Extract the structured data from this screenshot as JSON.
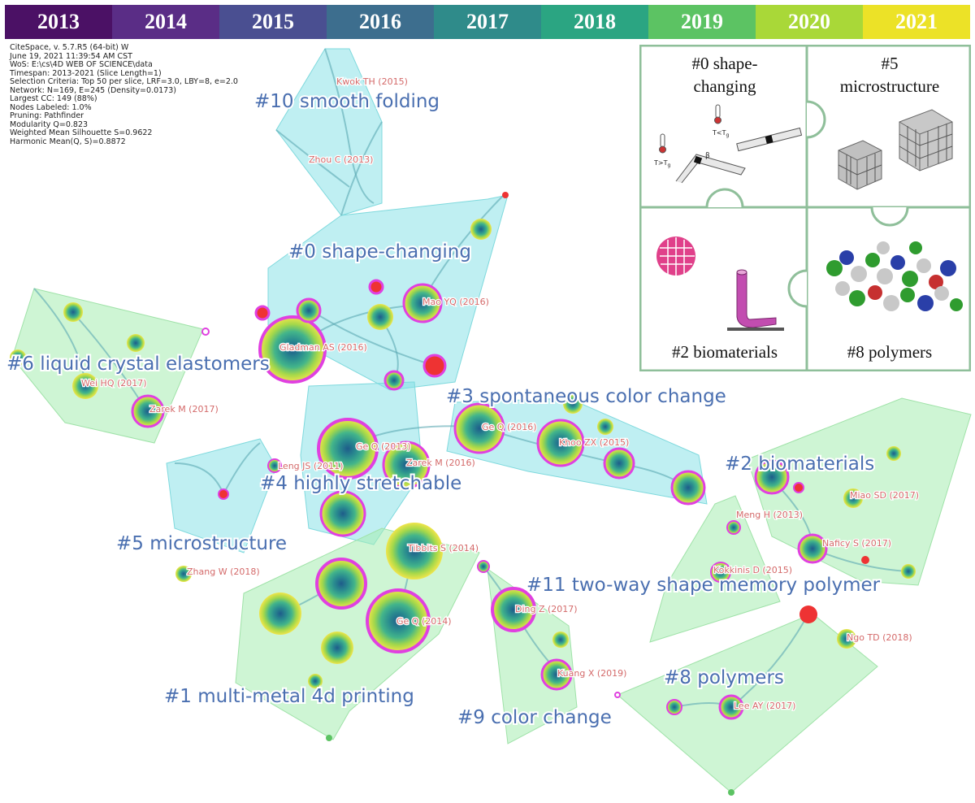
{
  "years": [
    {
      "label": "2013",
      "color": "#4b1165"
    },
    {
      "label": "2014",
      "color": "#5a2d86"
    },
    {
      "label": "2015",
      "color": "#4a4f91"
    },
    {
      "label": "2016",
      "color": "#3d6e8e"
    },
    {
      "label": "2017",
      "color": "#2f8b8a"
    },
    {
      "label": "2018",
      "color": "#2ba582"
    },
    {
      "label": "2019",
      "color": "#5cc363"
    },
    {
      "label": "2020",
      "color": "#a9d838"
    },
    {
      "label": "2021",
      "color": "#ece227"
    }
  ],
  "meta_lines": [
    "CiteSpace, v. 5.7.R5 (64-bit) W",
    "June 19, 2021 11:39:54 AM CST",
    "WoS: E:\\cs\\4D WEB OF SCIENCE\\data",
    "Timespan: 2013-2021 (Slice Length=1)",
    "Selection Criteria: Top 50 per slice, LRF=3.0, LBY=8, e=2.0",
    "Network: N=169, E=245 (Density=0.0173)",
    "Largest CC: 149 (88%)",
    "Nodes Labeled: 1.0%",
    "Pruning: Pathfinder",
    "Modularity Q=0.823",
    "Weighted Mean Silhouette S=0.9622",
    "Harmonic Mean(Q, S)=0.8872"
  ],
  "clusters": [
    "#10 smooth folding",
    "#0 shape-changing",
    "#6 liquid crystal elastomers",
    "#3 spontaneous color change",
    "#4 highly stretchable",
    "#2 biomaterials",
    "#5 microstructure",
    "#11 two-way shape memory polymer",
    "#8 polymers",
    "#1 multi-metal 4d printing",
    "#9 color change"
  ],
  "authors": [
    "Kwok TH (2015)",
    "Zhou C (2013)",
    "Mao YQ (2016)",
    "Gladman AS (2016)",
    "Wei HQ (2017)",
    "Zarek M (2017)",
    "Ge Q (2016)",
    "Khoo ZX (2015)",
    "Ge Q (2013)",
    "Leng JS (2011)",
    "Zarek M (2016)",
    "Miao SD (2017)",
    "Meng H (2013)",
    "Naficy S (2017)",
    "Kokkinis D (2015)",
    "Tibbits S (2014)",
    "Zhang W (2018)",
    "Ge Q (2014)",
    "Ding Z (2017)",
    "Ngo TD (2018)",
    "Kuang X (2019)",
    "Lee AY (2017)"
  ],
  "puzzle": {
    "p0": [
      "#0 shape-",
      "changing"
    ],
    "p5": [
      "#5",
      "microstructure"
    ],
    "p2": "#2 biomaterials",
    "p8": "#8 polymers",
    "temp_low": "T<T",
    "temp_high": "T>T",
    "temp_sub": "g",
    "beta": "β"
  }
}
